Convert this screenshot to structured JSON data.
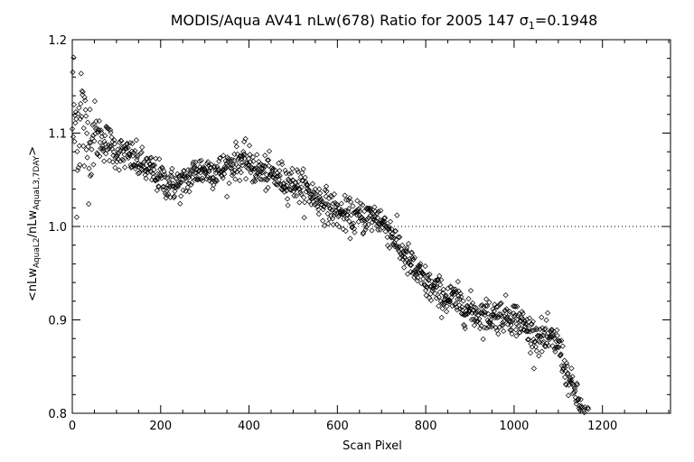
{
  "chart_data": {
    "type": "scatter",
    "title": {
      "main": "MODIS/Aqua AV41 nLw(678) Ratio for 2005 147 σ",
      "sub": "1",
      "tail": "=0.1948"
    },
    "xlabel": "Scan Pixel",
    "ylabel": {
      "a": "<nLw",
      "a_sub": "AquaL2",
      "b": "/nLw",
      "b_sub": "AquaL3,7DAY",
      "c": ">"
    },
    "xlim": [
      0,
      1354
    ],
    "ylim": [
      0.8,
      1.2
    ],
    "xticks": [
      0,
      200,
      400,
      600,
      800,
      1000,
      1200
    ],
    "xtick_labels": [
      "0",
      "200",
      "400",
      "600",
      "800",
      "1000",
      "1200"
    ],
    "yticks": [
      0.8,
      0.9,
      1.0,
      1.1,
      1.2
    ],
    "ytick_labels": [
      "0.8",
      "0.9",
      "1.0",
      "1.1",
      "1.2"
    ],
    "reference_line": 1.0,
    "marker": "diamond-outline",
    "trend": {
      "x": [
        0,
        10,
        20,
        30,
        45,
        60,
        80,
        100,
        130,
        160,
        190,
        220,
        250,
        280,
        310,
        340,
        370,
        390,
        420,
        450,
        480,
        510,
        540,
        570,
        600,
        630,
        660,
        690,
        720,
        750,
        780,
        810,
        840,
        870,
        900,
        930,
        960,
        990,
        1010,
        1040,
        1070,
        1100,
        1120,
        1140,
        1155,
        1170
      ],
      "y": [
        1.12,
        1.1,
        1.13,
        1.09,
        1.1,
        1.095,
        1.09,
        1.08,
        1.075,
        1.065,
        1.055,
        1.045,
        1.045,
        1.06,
        1.06,
        1.06,
        1.07,
        1.07,
        1.06,
        1.055,
        1.05,
        1.045,
        1.035,
        1.025,
        1.015,
        1.01,
        1.01,
        1.01,
        0.995,
        0.97,
        0.95,
        0.935,
        0.925,
        0.92,
        0.91,
        0.905,
        0.905,
        0.905,
        0.9,
        0.885,
        0.88,
        0.875,
        0.84,
        0.82,
        0.8,
        0.795
      ]
    },
    "spread": {
      "x": [
        0,
        40,
        60,
        100,
        1100,
        1170
      ],
      "y": [
        0.05,
        0.025,
        0.012,
        0.009,
        0.009,
        0.006
      ]
    },
    "n_points": 1170
  }
}
